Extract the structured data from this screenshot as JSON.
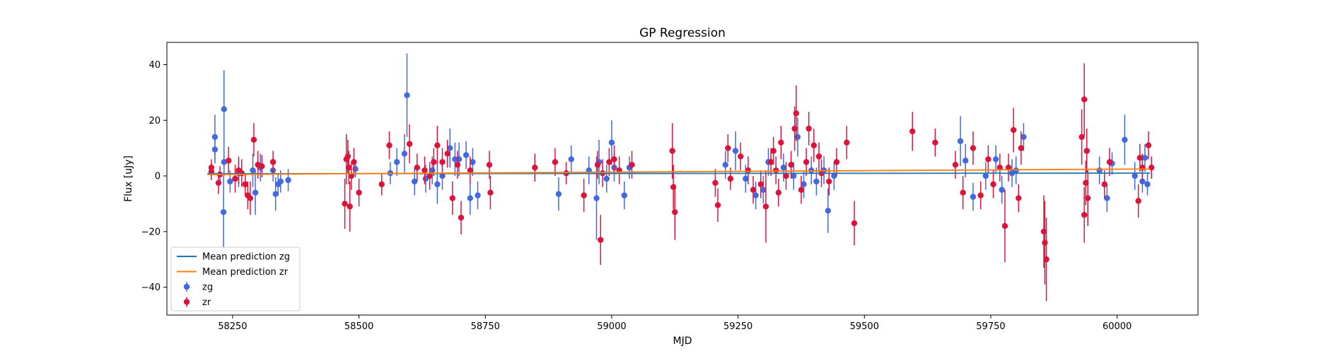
{
  "chart_data": {
    "type": "scatter",
    "title": "GP Regression",
    "xlabel": "MJD",
    "ylabel": "Flux [uJy]",
    "xlim": [
      58120,
      60160
    ],
    "ylim": [
      -50,
      48
    ],
    "xticks": [
      58250,
      58500,
      58750,
      59000,
      59250,
      59500,
      59750,
      60000
    ],
    "yticks": [
      -40,
      -20,
      0,
      20,
      40
    ],
    "grid": false,
    "legend_position": "lower-left",
    "legend": [
      "Mean prediction zg",
      "Mean prediction zr",
      "zg",
      "zr"
    ],
    "series": [
      {
        "name": "Mean prediction zg",
        "kind": "line",
        "color": "#1f77b4",
        "points": [
          [
            58200,
            0.8
          ],
          [
            60065,
            1.0
          ]
        ]
      },
      {
        "name": "Mean prediction zr",
        "kind": "line",
        "color": "#ff7f0e",
        "points": [
          [
            58200,
            0.5
          ],
          [
            60065,
            2.5
          ]
        ]
      },
      {
        "name": "zg",
        "kind": "errorbar",
        "color": "#4169e1",
        "points": [
          [
            58215,
            14,
            8
          ],
          [
            58215,
            9.5,
            5
          ],
          [
            58233,
            24,
            14
          ],
          [
            58233,
            5,
            5
          ],
          [
            58232,
            -13,
            13
          ],
          [
            58245,
            -2,
            4
          ],
          [
            58262,
            1,
            5
          ],
          [
            58290,
            2,
            6
          ],
          [
            58295,
            -6,
            8
          ],
          [
            58305,
            3,
            5
          ],
          [
            58330,
            2,
            4
          ],
          [
            58335,
            -6.5,
            6
          ],
          [
            58340,
            -3,
            4
          ],
          [
            58345,
            -2,
            4
          ],
          [
            58360,
            -1.5,
            4
          ],
          [
            58493,
            2.5,
            3
          ],
          [
            58562,
            1,
            4
          ],
          [
            58575,
            5,
            5
          ],
          [
            58590,
            8,
            7
          ],
          [
            58595,
            29,
            15
          ],
          [
            58610,
            -2,
            5
          ],
          [
            58632,
            -1,
            5
          ],
          [
            58645,
            2,
            5
          ],
          [
            58655,
            -3,
            7
          ],
          [
            58665,
            0,
            5
          ],
          [
            58680,
            10,
            7
          ],
          [
            58690,
            6,
            6
          ],
          [
            58698,
            6,
            6
          ],
          [
            58712,
            7.5,
            5
          ],
          [
            58720,
            -8,
            6
          ],
          [
            58725,
            5,
            5
          ],
          [
            58735,
            -7,
            5
          ],
          [
            58895,
            -6.5,
            6
          ],
          [
            58920,
            6,
            5
          ],
          [
            58955,
            2,
            5
          ],
          [
            58970,
            -8,
            15
          ],
          [
            58975,
            5,
            8
          ],
          [
            58990,
            -1,
            5
          ],
          [
            59000,
            12,
            8
          ],
          [
            59005,
            3,
            5
          ],
          [
            59025,
            -7,
            5
          ],
          [
            59035,
            3,
            4
          ],
          [
            59225,
            4,
            5
          ],
          [
            59245,
            9,
            7
          ],
          [
            59265,
            -1,
            5
          ],
          [
            59285,
            -7,
            5
          ],
          [
            59300,
            -5,
            5
          ],
          [
            59310,
            5,
            5
          ],
          [
            59340,
            3,
            5
          ],
          [
            59360,
            0,
            5
          ],
          [
            59368,
            14,
            7
          ],
          [
            59380,
            -3,
            5
          ],
          [
            59395,
            2,
            5
          ],
          [
            59405,
            -2,
            5
          ],
          [
            59420,
            2,
            5
          ],
          [
            59428,
            -12.5,
            8
          ],
          [
            59440,
            0,
            5
          ],
          [
            59690,
            12.5,
            9
          ],
          [
            59700,
            5.5,
            6
          ],
          [
            59715,
            -7.5,
            5
          ],
          [
            59740,
            0,
            5
          ],
          [
            59760,
            6,
            5
          ],
          [
            59772,
            -5,
            5
          ],
          [
            59792,
            1,
            5
          ],
          [
            59800,
            2,
            5
          ],
          [
            59815,
            14,
            5
          ],
          [
            59965,
            2,
            5
          ],
          [
            59980,
            -8,
            5
          ],
          [
            59990,
            4.5,
            4
          ],
          [
            60015,
            13,
            9
          ],
          [
            60035,
            0,
            5
          ],
          [
            60050,
            -2,
            4
          ],
          [
            60055,
            6.5,
            5
          ],
          [
            60060,
            -3,
            4
          ]
        ]
      },
      {
        "name": "zr",
        "kind": "errorbar",
        "color": "#dc143c",
        "points": [
          [
            58208,
            3,
            3
          ],
          [
            58208,
            1.5,
            3
          ],
          [
            58222,
            -2.5,
            4
          ],
          [
            58225,
            0.5,
            3
          ],
          [
            58242,
            5.5,
            5
          ],
          [
            58255,
            -1,
            5
          ],
          [
            58262,
            2,
            5
          ],
          [
            58268,
            1,
            5
          ],
          [
            58275,
            -3,
            4
          ],
          [
            58280,
            -7,
            5
          ],
          [
            58285,
            -8,
            6
          ],
          [
            58292,
            13,
            6
          ],
          [
            58300,
            4,
            5
          ],
          [
            58308,
            3.5,
            4
          ],
          [
            58330,
            5,
            4
          ],
          [
            58472,
            -10,
            9
          ],
          [
            58475,
            6,
            9
          ],
          [
            58478,
            7,
            6
          ],
          [
            58480,
            3,
            6
          ],
          [
            58482,
            -11,
            9
          ],
          [
            58485,
            0,
            5
          ],
          [
            58490,
            5,
            5
          ],
          [
            58500,
            -6,
            5
          ],
          [
            58545,
            -3,
            4
          ],
          [
            58560,
            11,
            5
          ],
          [
            58600,
            11.5,
            7
          ],
          [
            58615,
            3,
            5
          ],
          [
            58630,
            2,
            5
          ],
          [
            58640,
            0,
            5
          ],
          [
            58648,
            5,
            5
          ],
          [
            58655,
            11,
            7
          ],
          [
            58665,
            5,
            5
          ],
          [
            58675,
            8,
            5
          ],
          [
            58685,
            -8,
            6
          ],
          [
            58695,
            4,
            5
          ],
          [
            58702,
            -15,
            6
          ],
          [
            58720,
            2,
            5
          ],
          [
            58758,
            4,
            5
          ],
          [
            58760,
            -6,
            6
          ],
          [
            58848,
            3,
            5
          ],
          [
            58888,
            5,
            5
          ],
          [
            58910,
            1,
            4
          ],
          [
            58945,
            -7,
            6
          ],
          [
            58972,
            4,
            5
          ],
          [
            58978,
            -23,
            9
          ],
          [
            58982,
            1,
            5
          ],
          [
            58995,
            5,
            5
          ],
          [
            59005,
            6,
            5
          ],
          [
            59015,
            2,
            5
          ],
          [
            59040,
            4,
            5
          ],
          [
            59120,
            9,
            10
          ],
          [
            59122,
            -4,
            8
          ],
          [
            59125,
            -13,
            10
          ],
          [
            59205,
            -2.5,
            5
          ],
          [
            59210,
            -10.5,
            6
          ],
          [
            59230,
            10,
            5
          ],
          [
            59235,
            -1,
            4
          ],
          [
            59255,
            7,
            5
          ],
          [
            59270,
            2,
            5
          ],
          [
            59280,
            -5,
            5
          ],
          [
            59295,
            -3,
            5
          ],
          [
            59305,
            -11,
            13
          ],
          [
            59315,
            5,
            5
          ],
          [
            59320,
            9,
            5
          ],
          [
            59325,
            2,
            5
          ],
          [
            59330,
            -6,
            5
          ],
          [
            59335,
            12,
            6
          ],
          [
            59345,
            0,
            5
          ],
          [
            59355,
            4,
            5
          ],
          [
            59362,
            17,
            8
          ],
          [
            59365,
            22.5,
            10
          ],
          [
            59375,
            -5,
            5
          ],
          [
            59385,
            5,
            5
          ],
          [
            59390,
            17,
            6
          ],
          [
            59400,
            11,
            6
          ],
          [
            59410,
            7,
            5
          ],
          [
            59415,
            1,
            5
          ],
          [
            59430,
            -2,
            5
          ],
          [
            59445,
            5,
            5
          ],
          [
            59465,
            12,
            6
          ],
          [
            59480,
            -17,
            8
          ],
          [
            59595,
            16,
            7
          ],
          [
            59640,
            12,
            5
          ],
          [
            59680,
            4,
            5
          ],
          [
            59695,
            -6,
            6
          ],
          [
            59715,
            10,
            6
          ],
          [
            59730,
            -7,
            5
          ],
          [
            59745,
            6,
            5
          ],
          [
            59755,
            -3,
            5
          ],
          [
            59768,
            3,
            5
          ],
          [
            59778,
            -18,
            13
          ],
          [
            59785,
            3,
            5
          ],
          [
            59795,
            16.5,
            8
          ],
          [
            59805,
            -8,
            5
          ],
          [
            59810,
            10,
            6
          ],
          [
            59855,
            -20,
            13
          ],
          [
            59857,
            -24,
            15
          ],
          [
            59860,
            -30,
            15
          ],
          [
            59930,
            14,
            10
          ],
          [
            59935,
            27.5,
            13
          ],
          [
            59935,
            -14,
            10
          ],
          [
            59940,
            9,
            8
          ],
          [
            59942,
            -8,
            10
          ],
          [
            59938,
            -2.5,
            8
          ],
          [
            59975,
            -3,
            5
          ],
          [
            59985,
            5,
            5
          ],
          [
            60045,
            6.5,
            5
          ],
          [
            60042,
            -9,
            6
          ],
          [
            60050,
            3,
            5
          ],
          [
            60062,
            11,
            5
          ],
          [
            60068,
            3,
            4
          ]
        ]
      }
    ]
  }
}
